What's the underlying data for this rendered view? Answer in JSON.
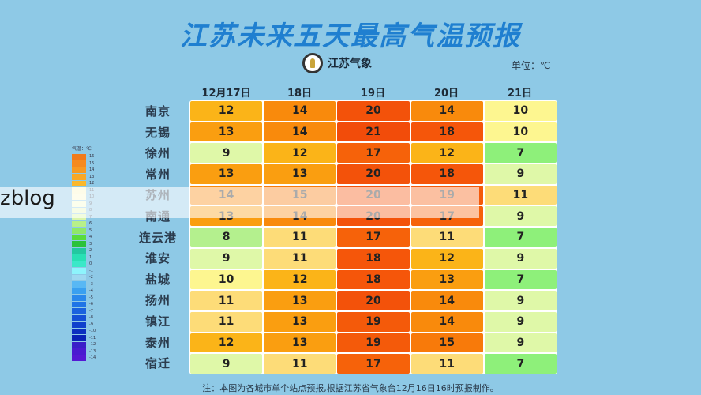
{
  "header": {
    "title": "江苏未来五天最高气温预报",
    "brand": "江苏气象",
    "unit": "单位：℃"
  },
  "legend": {
    "title": "气温：℃",
    "items": [
      {
        "label": "16",
        "color": "#f07a1a"
      },
      {
        "label": "15",
        "color": "#f58a1e"
      },
      {
        "label": "14",
        "color": "#f79a22"
      },
      {
        "label": "13",
        "color": "#f9a826"
      },
      {
        "label": "12",
        "color": "#fbb82c"
      },
      {
        "label": "11",
        "color": "#fdf6c4"
      },
      {
        "label": "10",
        "color": "#fdf9cf"
      },
      {
        "label": "9",
        "color": "#f4fbd0"
      },
      {
        "label": "8",
        "color": "#e8f8c0"
      },
      {
        "label": "7",
        "color": "#d9f6ac"
      },
      {
        "label": "6",
        "color": "#b8f08a"
      },
      {
        "label": "5",
        "color": "#8fe86a"
      },
      {
        "label": "4",
        "color": "#58dc3c"
      },
      {
        "label": "3",
        "color": "#2bc23a"
      },
      {
        "label": "2",
        "color": "#22c8a0"
      },
      {
        "label": "1",
        "color": "#28e0b4"
      },
      {
        "label": "0",
        "color": "#3ae8c8"
      },
      {
        "label": "-1",
        "color": "#8ef4fc"
      },
      {
        "label": "-2",
        "color": "#9ed8f0"
      },
      {
        "label": "-3",
        "color": "#58b8f4"
      },
      {
        "label": "-4",
        "color": "#3aa0f0"
      },
      {
        "label": "-5",
        "color": "#2a88ec"
      },
      {
        "label": "-6",
        "color": "#1f74e6"
      },
      {
        "label": "-7",
        "color": "#1a62de"
      },
      {
        "label": "-8",
        "color": "#1450d6"
      },
      {
        "label": "-9",
        "color": "#1040cc"
      },
      {
        "label": "-10",
        "color": "#0c30c0"
      },
      {
        "label": "-11",
        "color": "#0a22b6"
      },
      {
        "label": "-12",
        "color": "#3a1ec8"
      },
      {
        "label": "-13",
        "color": "#4a1ad0"
      },
      {
        "label": "-14",
        "color": "#5518d4"
      }
    ]
  },
  "watermark": "zblog",
  "footnote": "注：本图为各城市单个站点预报,根据江苏省气象台12月16日16时预报制作。",
  "chart_data": {
    "type": "heatmap",
    "title": "江苏未来五天最高气温预报",
    "unit": "℃",
    "columns": [
      "12月17日",
      "18日",
      "19日",
      "20日",
      "21日"
    ],
    "rows": [
      "南京",
      "无锡",
      "徐州",
      "常州",
      "苏州",
      "南通",
      "连云港",
      "淮安",
      "盐城",
      "扬州",
      "镇江",
      "泰州",
      "宿迁"
    ],
    "values": [
      [
        12,
        14,
        20,
        14,
        10
      ],
      [
        13,
        14,
        21,
        18,
        10
      ],
      [
        9,
        12,
        17,
        12,
        7
      ],
      [
        13,
        13,
        20,
        18,
        9
      ],
      [
        14,
        15,
        20,
        19,
        11
      ],
      [
        13,
        14,
        20,
        17,
        9
      ],
      [
        8,
        11,
        17,
        11,
        7
      ],
      [
        9,
        11,
        18,
        12,
        9
      ],
      [
        10,
        12,
        18,
        13,
        7
      ],
      [
        11,
        13,
        20,
        14,
        9
      ],
      [
        11,
        13,
        19,
        14,
        9
      ],
      [
        12,
        13,
        19,
        15,
        9
      ],
      [
        9,
        11,
        17,
        11,
        7
      ]
    ],
    "legend_range": [
      -14,
      16
    ]
  },
  "color_scale": {
    "7": "#8ef07a",
    "8": "#b4f08e",
    "9": "#dff8a8",
    "10": "#fdf690",
    "11": "#fddc78",
    "12": "#fbb418",
    "13": "#fa9e10",
    "14": "#f98a0c",
    "15": "#f87a0a",
    "17": "#f6620a",
    "18": "#f5560a",
    "19": "#f45a0a",
    "20": "#f3520a",
    "21": "#f24c0a"
  }
}
